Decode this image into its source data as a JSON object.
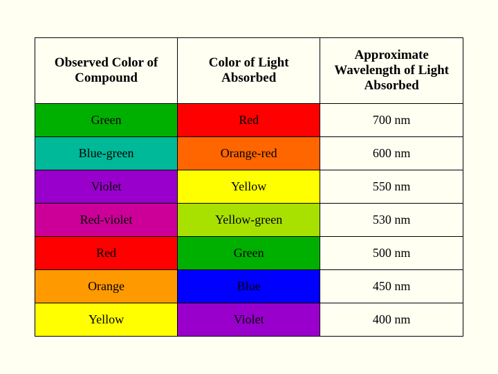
{
  "table": {
    "headers": [
      "Observed Color of Compound",
      "Color of Light Absorbed",
      "Approximate Wavelength of Light Absorbed"
    ],
    "header_bg": "#fffff2",
    "rows": [
      {
        "observed": "Green",
        "observed_bg": "#00b000",
        "absorbed": "Red",
        "absorbed_bg": "#ff0000",
        "wavelength": "700 nm",
        "wavelength_bg": "#fffff2"
      },
      {
        "observed": "Blue-green",
        "observed_bg": "#00b998",
        "absorbed": "Orange-red",
        "absorbed_bg": "#ff6600",
        "wavelength": "600 nm",
        "wavelength_bg": "#fffff2"
      },
      {
        "observed": "Violet",
        "observed_bg": "#9900cc",
        "absorbed": "Yellow",
        "absorbed_bg": "#ffff00",
        "wavelength": "550 nm",
        "wavelength_bg": "#fffff2"
      },
      {
        "observed": "Red-violet",
        "observed_bg": "#cc0099",
        "absorbed": "Yellow-green",
        "absorbed_bg": "#a8e000",
        "wavelength": "530 nm",
        "wavelength_bg": "#fffff2"
      },
      {
        "observed": "Red",
        "observed_bg": "#ff0000",
        "absorbed": "Green",
        "absorbed_bg": "#00b000",
        "wavelength": "500 nm",
        "wavelength_bg": "#fffff2"
      },
      {
        "observed": "Orange",
        "observed_bg": "#ff9900",
        "absorbed": "Blue",
        "absorbed_bg": "#0000ff",
        "wavelength": "450 nm",
        "wavelength_bg": "#fffff2"
      },
      {
        "observed": "Yellow",
        "observed_bg": "#ffff00",
        "absorbed": "Violet",
        "absorbed_bg": "#9900cc",
        "wavelength": "400 nm",
        "wavelength_bg": "#fffff2"
      }
    ],
    "border_color": "#000000",
    "background_color": "#fffff2",
    "font_family": "Times New Roman",
    "header_fontsize": 19,
    "cell_fontsize": 18
  }
}
